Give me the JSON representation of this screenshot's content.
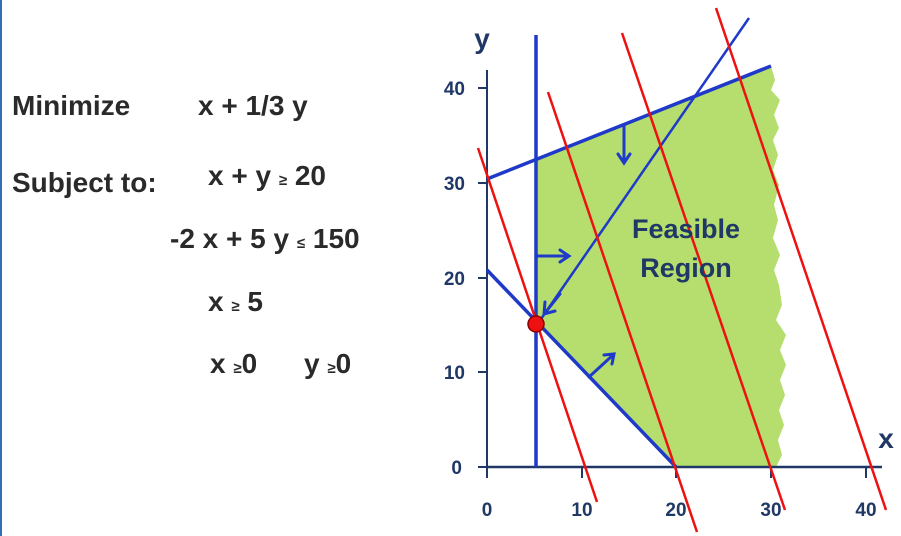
{
  "problem": {
    "objective_label": "Minimize",
    "objective": "x + 1/3 y",
    "constraints_label": "Subject to:",
    "constraints": [
      {
        "lhs": "x + y",
        "rel": "≥",
        "rhs": "20"
      },
      {
        "lhs": "-2 x + 5 y",
        "rel": "≤",
        "rhs": "150"
      },
      {
        "lhs": "x",
        "rel": "≥",
        "rhs": "5"
      }
    ],
    "nonneg": [
      {
        "lhs": "x",
        "rel": "≥",
        "rhs": "0"
      },
      {
        "lhs": "y",
        "rel": "≥",
        "rhs": "0"
      }
    ]
  },
  "graph": {
    "x_axis_label": "x",
    "y_axis_label": "y",
    "xlim": [
      0,
      40
    ],
    "ylim": [
      0,
      40
    ],
    "x_ticks": [
      "0",
      "10",
      "20",
      "30",
      "40"
    ],
    "y_ticks": [
      "0",
      "10",
      "20",
      "30",
      "40"
    ],
    "region_label_line1": "Feasible",
    "region_label_line2": "Region",
    "optimal_point": {
      "x": 5,
      "y": 15
    },
    "region_vertices": [
      [
        5,
        15
      ],
      [
        5,
        32
      ],
      [
        30,
        42
      ],
      [
        30,
        0
      ],
      [
        20,
        0
      ]
    ],
    "constraint_lines": [
      {
        "name": "x + y = 20",
        "from": [
          0,
          20
        ],
        "to": [
          20,
          0
        ]
      },
      {
        "name": "-2x + 5y = 150",
        "from": [
          0,
          30
        ],
        "to": [
          30,
          42
        ]
      },
      {
        "name": "x = 5",
        "from": [
          5,
          0
        ],
        "to": [
          5,
          45.5
        ]
      }
    ],
    "objective_lines": [
      {
        "name": "x + 1/3 y = 10",
        "from": [
          0,
          30
        ],
        "to": [
          12,
          -4
        ]
      },
      {
        "name": "x + 1/3 y = 20",
        "from": [
          6.5,
          40.5
        ],
        "to": [
          22,
          -6.5
        ]
      },
      {
        "name": "x + 1/3 y = 30",
        "from": [
          14,
          46
        ],
        "to": [
          31.5,
          -6.5
        ]
      },
      {
        "name": "x + 1/3 y = 40",
        "from": [
          24,
          48
        ],
        "to": [
          42,
          -6
        ]
      }
    ],
    "colors": {
      "feasible": "#b5de6e",
      "constraint": "#1f3ac8",
      "objective": "#ee1111",
      "axis": "#1f3866",
      "point": "#ee1111"
    }
  }
}
